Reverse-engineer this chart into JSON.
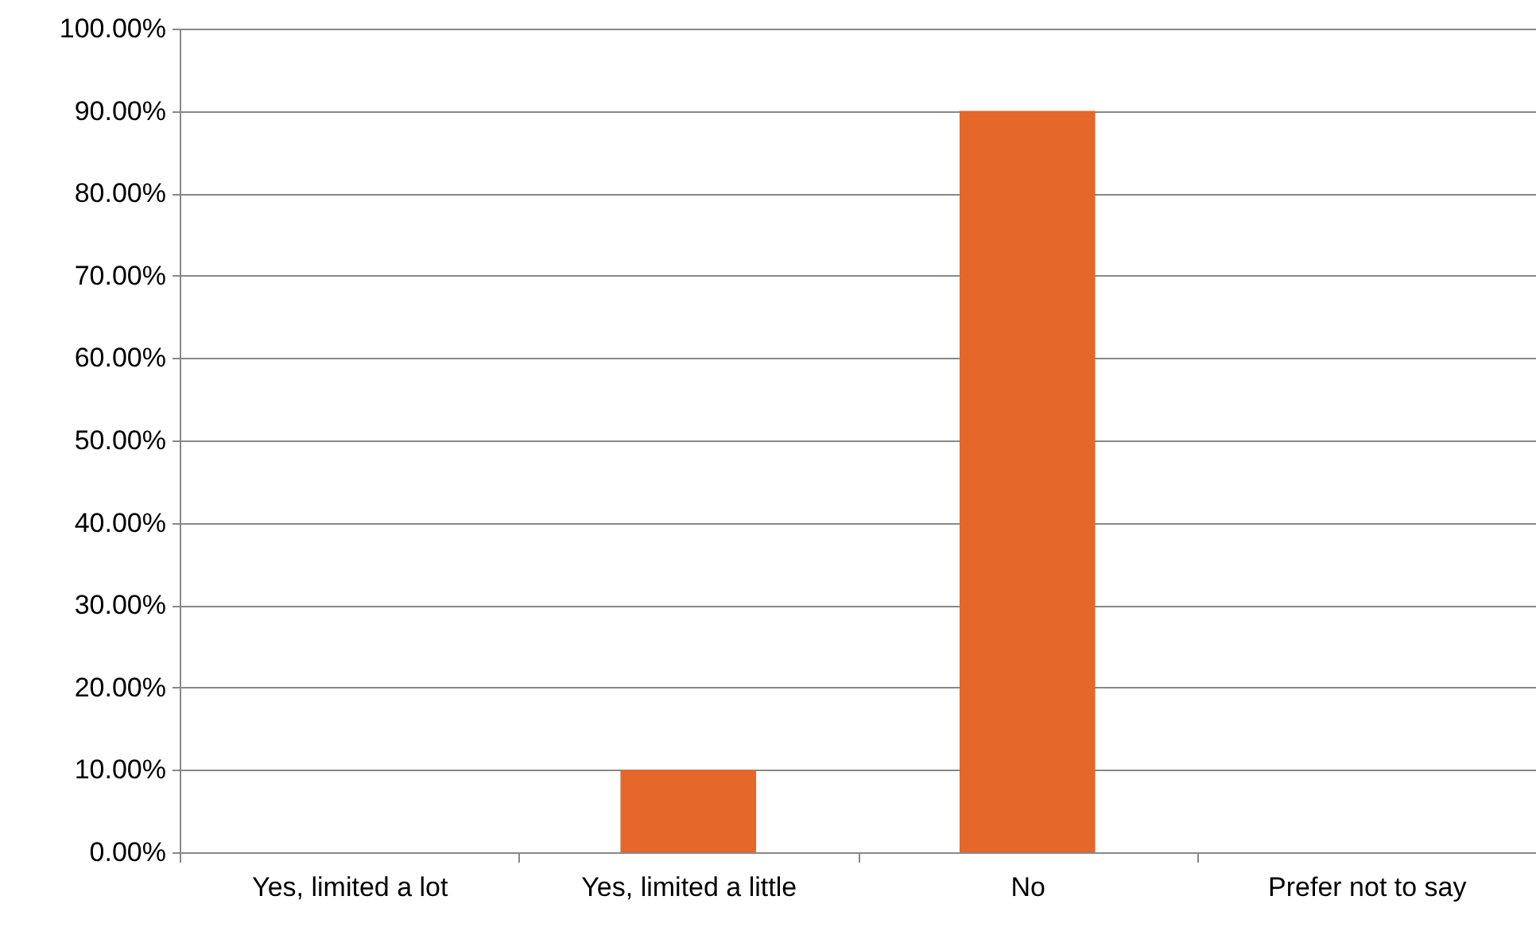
{
  "chart_data": {
    "type": "bar",
    "categories": [
      "Yes, limited a lot",
      "Yes, limited a little",
      "No",
      "Prefer not to say"
    ],
    "values": [
      0,
      10,
      90,
      0
    ],
    "color": "#e5672a",
    "ylim": [
      0,
      100
    ],
    "yticks": [
      {
        "value": 0,
        "label": "0.00%"
      },
      {
        "value": 10,
        "label": "10.00%"
      },
      {
        "value": 20,
        "label": "20.00%"
      },
      {
        "value": 30,
        "label": "30.00%"
      },
      {
        "value": 40,
        "label": "40.00%"
      },
      {
        "value": 50,
        "label": "50.00%"
      },
      {
        "value": 60,
        "label": "60.00%"
      },
      {
        "value": 70,
        "label": "70.00%"
      },
      {
        "value": 80,
        "label": "80.00%"
      },
      {
        "value": 90,
        "label": "90.00%"
      },
      {
        "value": 100,
        "label": "100.00%"
      }
    ],
    "grid": "y"
  }
}
